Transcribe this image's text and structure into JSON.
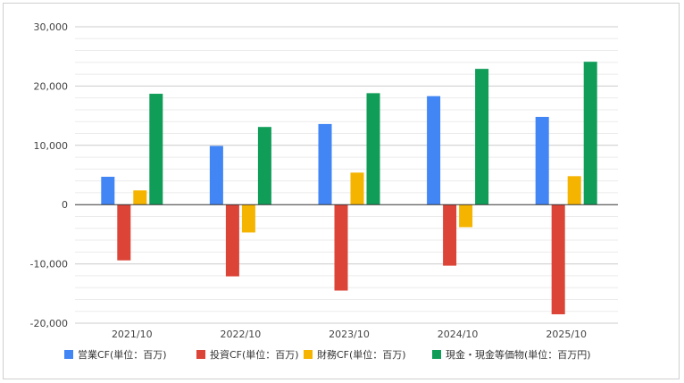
{
  "chart_data": {
    "type": "bar",
    "categories": [
      "2021/10",
      "2022/10",
      "2023/10",
      "2024/10",
      "2025/10"
    ],
    "series": [
      {
        "name": "営業CF(単位：百万)",
        "color": "#4285F4",
        "values": [
          4700,
          9900,
          13600,
          18300,
          14800
        ]
      },
      {
        "name": "投資CF(単位：百万)",
        "color": "#DB4437",
        "values": [
          -9400,
          -12100,
          -14500,
          -10300,
          -18500
        ]
      },
      {
        "name": "財務CF(単位：百万)",
        "color": "#F4B400",
        "values": [
          2400,
          -4700,
          5400,
          -3800,
          4800
        ]
      },
      {
        "name": "現金・現金等価物(単位：百万円)",
        "color": "#0F9D58",
        "values": [
          18700,
          13100,
          18800,
          22900,
          24100
        ]
      }
    ],
    "yticks": [
      "30,000",
      "20,000",
      "10,000",
      "0",
      "-10,000",
      "-20,000"
    ],
    "ylim": [
      -20000,
      30000
    ],
    "grid": true,
    "legend_position": "bottom",
    "title": "",
    "xlabel": "",
    "ylabel": ""
  }
}
